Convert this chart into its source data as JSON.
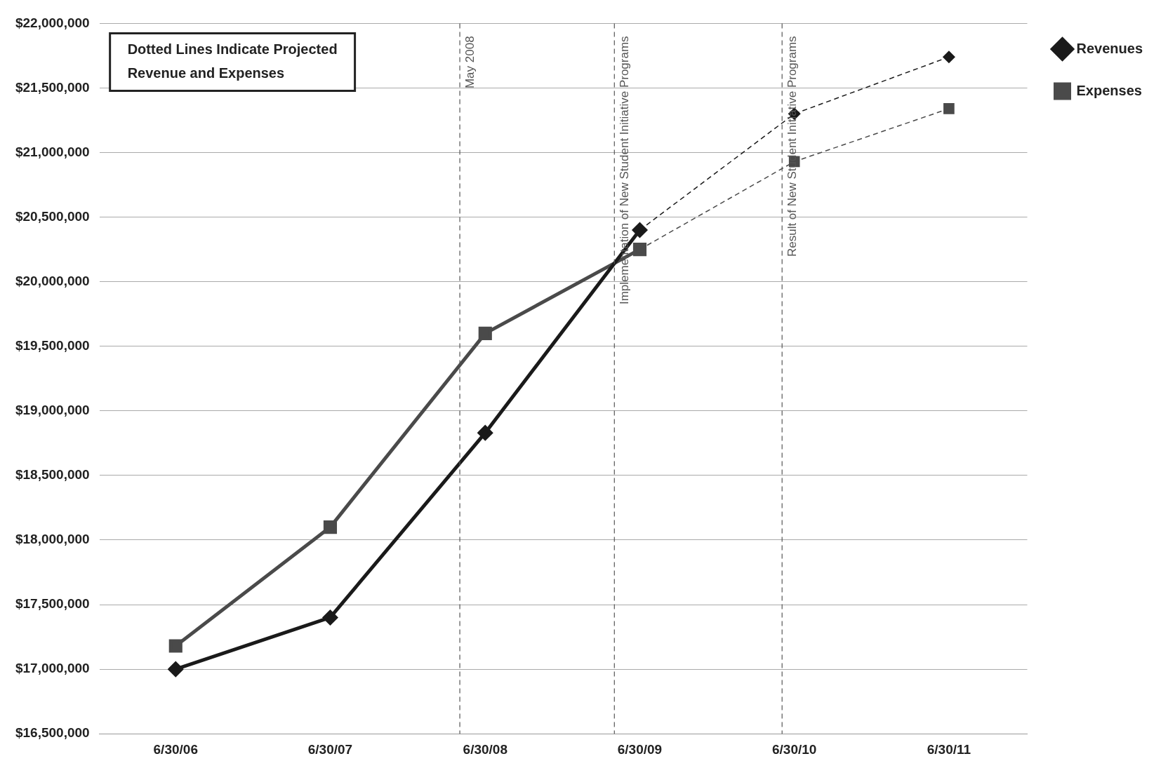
{
  "chart_data": {
    "type": "line",
    "series": [
      {
        "name": "Revenues",
        "color": "#1a1a1a",
        "marker": "diamond",
        "line_style": "solid",
        "x": [
          "2006-06-30",
          "2007-06-30",
          "2008-06-30",
          "2009-06-30"
        ],
        "values": [
          17000000,
          17400000,
          18830000,
          20400000
        ]
      },
      {
        "name": "Expenses",
        "color": "#4a4a4a",
        "marker": "square",
        "line_style": "solid",
        "x": [
          "2006-06-30",
          "2007-06-30",
          "2008-06-30",
          "2009-06-30"
        ],
        "values": [
          17180000,
          18100000,
          19600000,
          20250000
        ]
      },
      {
        "color": "#1a1a1a",
        "marker": "diamond",
        "line_style": "dashed",
        "x": [
          "2009-06-30",
          "2010-06-30",
          "2011-06-30"
        ],
        "values": [
          20400000,
          21300000,
          21740000
        ]
      },
      {
        "color": "#4a4a4a",
        "marker": "square",
        "line_style": "dashed",
        "x": [
          "2009-06-30",
          "2010-06-30",
          "2011-06-30"
        ],
        "values": [
          20250000,
          20930000,
          21340000
        ]
      }
    ],
    "xlim": [
      "2006-01-01",
      "2012-01-01"
    ],
    "xticks": [
      {
        "value": "2006-06-30",
        "label": "6/30/06"
      },
      {
        "value": "2007-06-30",
        "label": "6/30/07"
      },
      {
        "value": "2008-06-30",
        "label": "6/30/08"
      },
      {
        "value": "2009-06-30",
        "label": "6/30/09"
      },
      {
        "value": "2010-06-30",
        "label": "6/30/10"
      },
      {
        "value": "2011-06-30",
        "label": "6/30/11"
      }
    ],
    "ylim": [
      16500000,
      22000000
    ],
    "yticks": [
      {
        "value": 16500000,
        "label": "$16,500,000"
      },
      {
        "value": 17000000,
        "label": "$17,000,000"
      },
      {
        "value": 17500000,
        "label": "$17,500,000"
      },
      {
        "value": 18000000,
        "label": "$18,000,000"
      },
      {
        "value": 18500000,
        "label": "$18,500,000"
      },
      {
        "value": 19000000,
        "label": "$19,000,000"
      },
      {
        "value": 19500000,
        "label": "$19,500,000"
      },
      {
        "value": 20000000,
        "label": "$20,000,000"
      },
      {
        "value": 20500000,
        "label": "$20,500,000"
      },
      {
        "value": 21000000,
        "label": "$21,000,000"
      },
      {
        "value": 21500000,
        "label": "$21,500,000"
      },
      {
        "value": 22000000,
        "label": "$22,000,000"
      }
    ],
    "ref_lines": [
      {
        "axis": "x",
        "value": "2008-05",
        "label": "May 2008",
        "color": "#555555",
        "line_style": "dashed"
      },
      {
        "axis": "x",
        "value": "2009-05",
        "label": "Implementation of New Student Initiative Programs",
        "color": "#555555",
        "line_style": "dashed"
      },
      {
        "axis": "x",
        "value": "2010-06",
        "label": "Result of New Student Initiative Programs",
        "color": "#555555",
        "line_style": "dashed"
      }
    ],
    "annotations": [
      "Dotted Lines Indicate Projected Revenue and Expenses"
    ],
    "grid": "y",
    "legend": "top right"
  }
}
